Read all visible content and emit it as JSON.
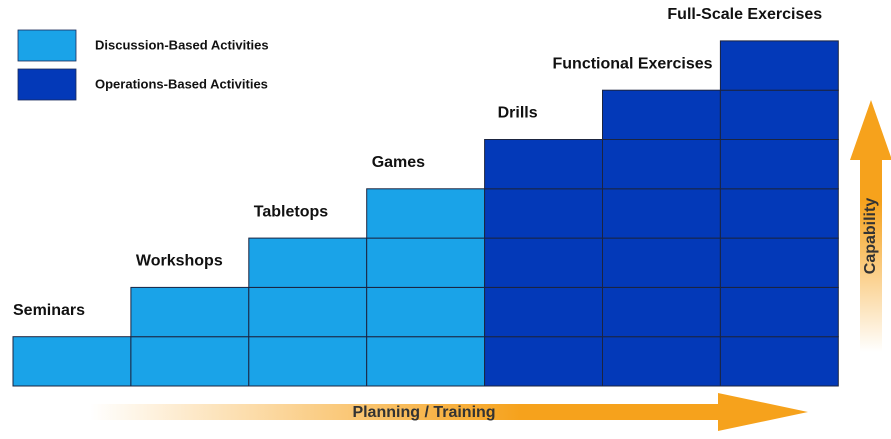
{
  "legend": [
    {
      "label": "Discussion-Based Activities",
      "color": "#1aa3e8"
    },
    {
      "label": "Operations-Based Activities",
      "color": "#0339b8"
    }
  ],
  "steps": [
    {
      "label": "Seminars",
      "color": "#1aa3e8"
    },
    {
      "label": "Workshops",
      "color": "#1aa3e8"
    },
    {
      "label": "Tabletops",
      "color": "#1aa3e8"
    },
    {
      "label": "Games",
      "color": "#1aa3e8"
    },
    {
      "label": "Drills",
      "color": "#0339b8"
    },
    {
      "label": "Functional Exercises",
      "color": "#0339b8"
    },
    {
      "label": "Full-Scale Exercises",
      "color": "#0339b8"
    }
  ],
  "x_arrow_label": "Planning / Training",
  "y_arrow_label": "Capability"
}
